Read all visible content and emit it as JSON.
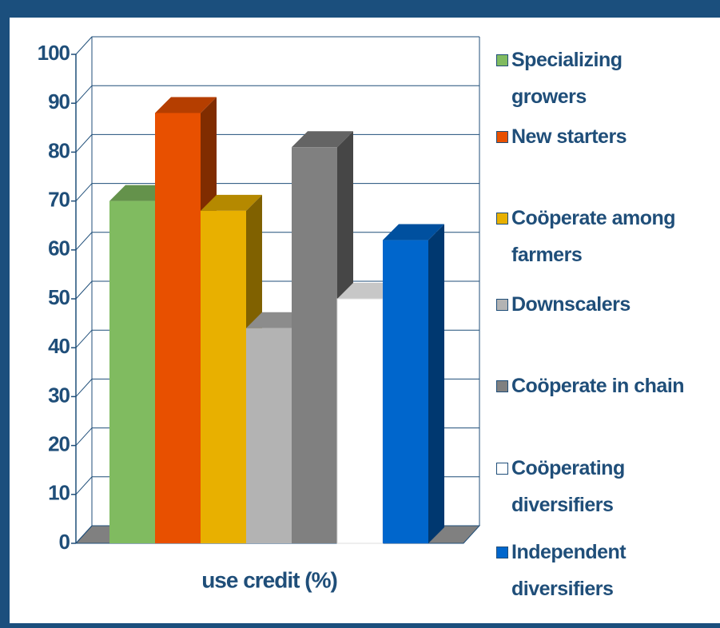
{
  "chart_data": {
    "type": "bar3d",
    "categories": [
      "use credit (%)"
    ],
    "series": [
      {
        "name": "Specializing\ngrowers",
        "color": "#80bb60",
        "values": [
          70
        ]
      },
      {
        "name": "New starters",
        "color": "#e85000",
        "values": [
          88
        ]
      },
      {
        "name": "Coöperate among\nfarmers",
        "color": "#e8b000",
        "values": [
          68
        ]
      },
      {
        "name": "Downscalers",
        "color": "#b3b3b3",
        "values": [
          44
        ]
      },
      {
        "name": "Coöperate in chain",
        "color": "#808080",
        "values": [
          81
        ]
      },
      {
        "name": "Coöperating\ndiversifiers",
        "color": "#ffffff",
        "values": [
          50
        ]
      },
      {
        "name": "Independent\ndiversifiers",
        "color": "#0066cc",
        "values": [
          62
        ]
      }
    ],
    "ylim": [
      0,
      100
    ],
    "yticks": [
      0,
      10,
      20,
      30,
      40,
      50,
      60,
      70,
      80,
      90,
      100
    ],
    "grid": true,
    "legend": "right"
  }
}
